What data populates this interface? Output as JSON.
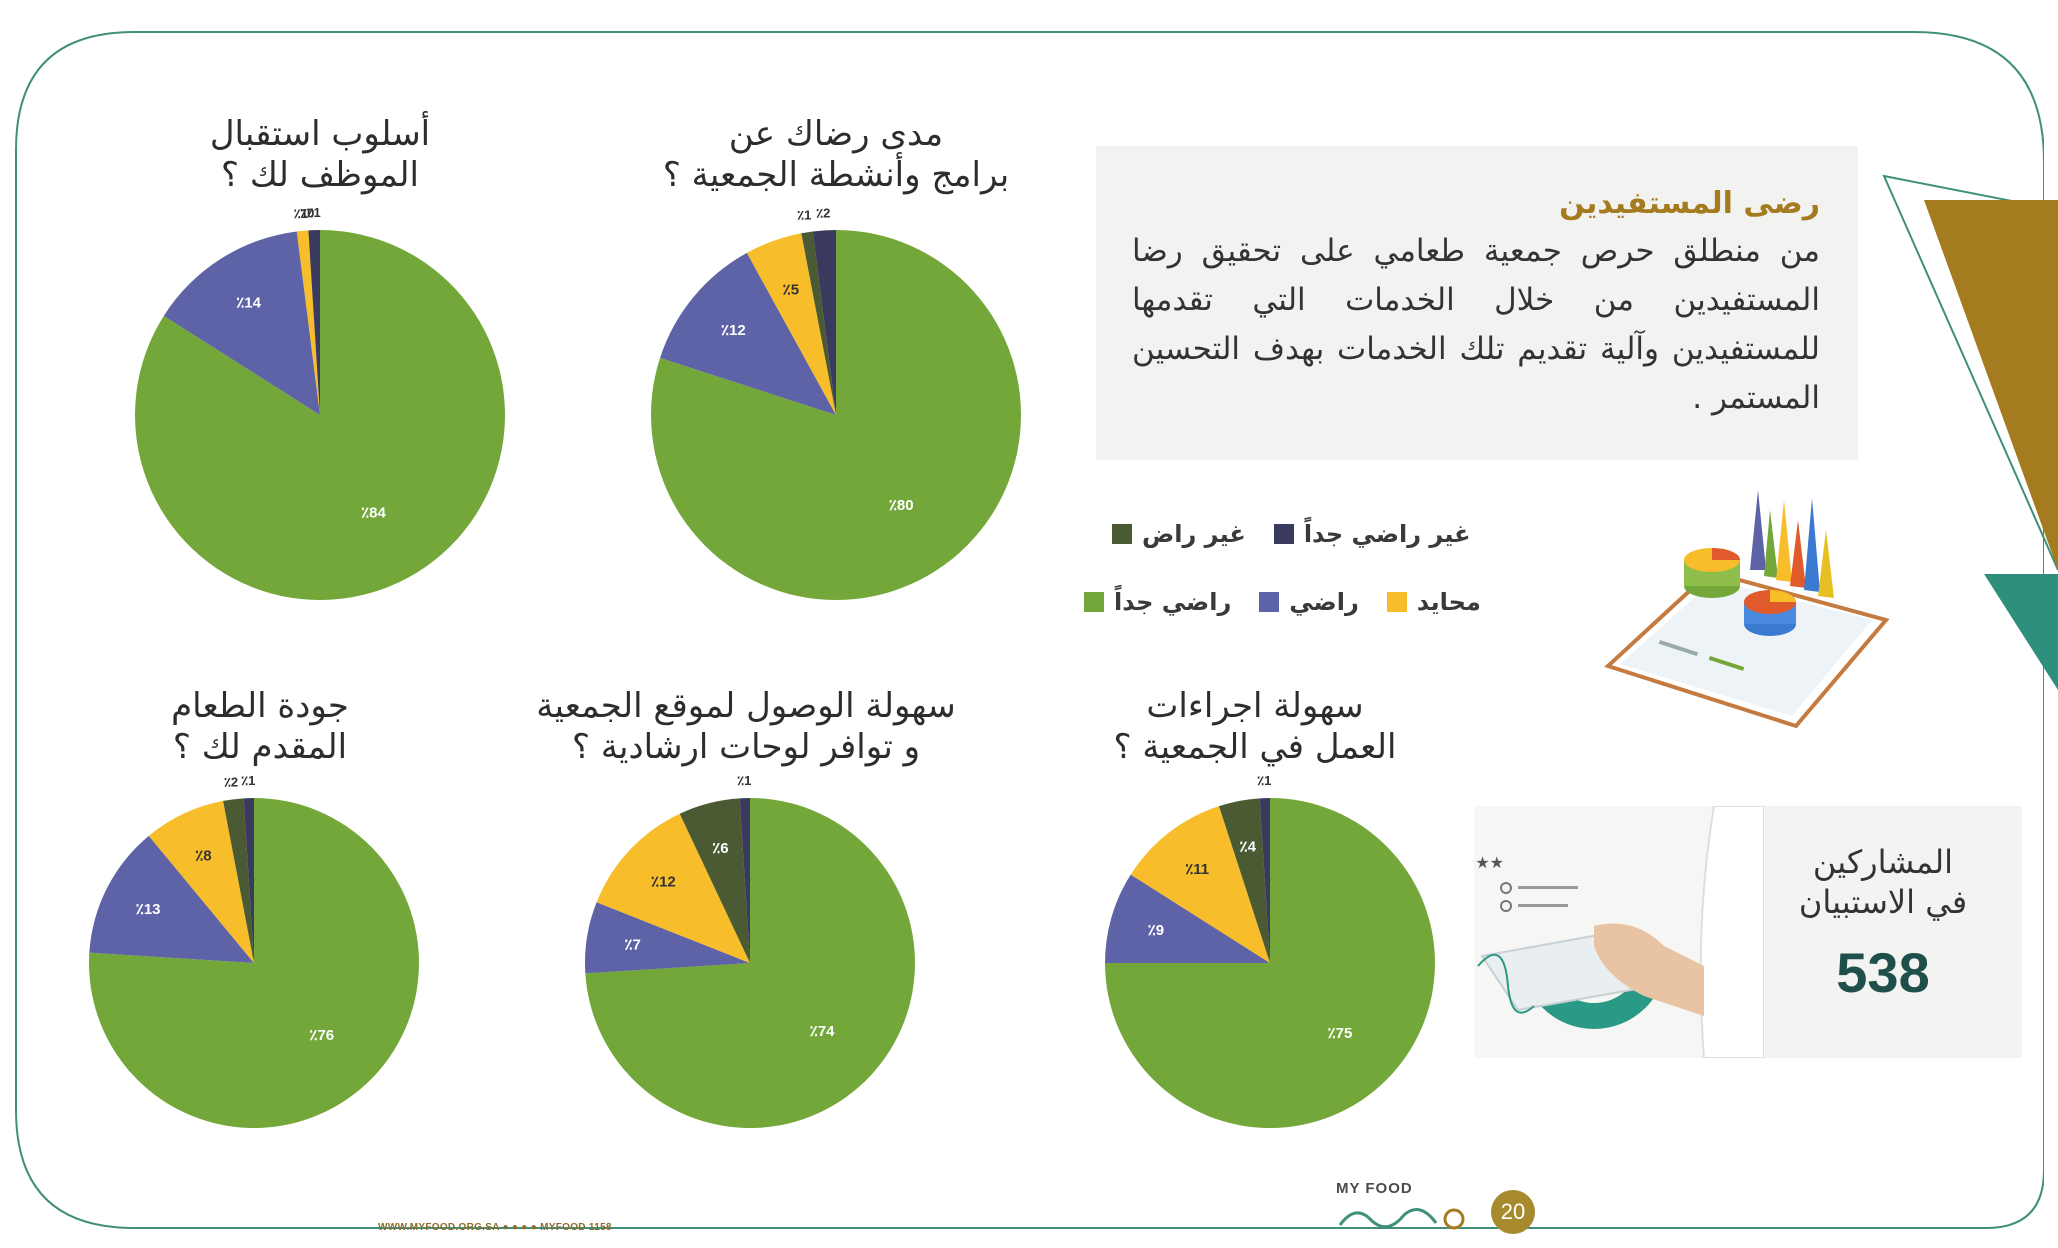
{
  "intro": {
    "heading": "رضى المستفيدين",
    "body": "من منطلق حرص جمعية طعامي على تحقيق رضا المستفيدين من خلال الخدمات التي تقدمها للمستفيدين وآلية تقديم تلك الخدمات بهدف التحسين المستمر ."
  },
  "legend": [
    {
      "label": "غير راضي جداً",
      "color": "#3a3a5e"
    },
    {
      "label": "غير راض",
      "color": "#4a5b33"
    },
    {
      "label": "محايد",
      "color": "#f7bd2a"
    },
    {
      "label": "راضي",
      "color": "#5d63a6"
    },
    {
      "label": "راضي جداً",
      "color": "#73a73a"
    }
  ],
  "participants": {
    "label_line1": "المشاركين",
    "label_line2": "في الاستبيان",
    "count": "538"
  },
  "footer": {
    "url": "WWW.MYFOOD.ORG.SA ● ● ● ● MYFOOD 1158",
    "brand": "MY FOOD",
    "page_number": "20"
  },
  "percent_prefix": "٪",
  "chart_data": [
    {
      "type": "pie",
      "title_line1": "أسلوب استقبال",
      "title_line2": "الموظف لك ؟",
      "categories": [
        "راضي جداً",
        "راضي",
        "محايد",
        "غير راض",
        "غير راضي جداً"
      ],
      "values": [
        84,
        14,
        1,
        0,
        1
      ]
    },
    {
      "type": "pie",
      "title_line1": "مدى رضاك عن",
      "title_line2": "برامج وأنشطة الجمعية ؟",
      "categories": [
        "راضي جداً",
        "راضي",
        "محايد",
        "غير راض",
        "غير راضي جداً"
      ],
      "values": [
        80,
        12,
        5,
        1,
        2
      ]
    },
    {
      "type": "pie",
      "title_line1": "جودة الطعام",
      "title_line2": "المقدم لك ؟",
      "categories": [
        "راضي جداً",
        "راضي",
        "محايد",
        "غير راض",
        "غير راضي جداً"
      ],
      "values": [
        76,
        13,
        8,
        2,
        1
      ]
    },
    {
      "type": "pie",
      "title_line1": "سهولة الوصول لموقع الجمعية",
      "title_line2": "و توافر لوحات ارشادية ؟",
      "categories": [
        "راضي جداً",
        "راضي",
        "محايد",
        "غير راض",
        "غير راضي جداً"
      ],
      "values": [
        74,
        7,
        12,
        6,
        1
      ]
    },
    {
      "type": "pie",
      "title_line1": "سهولة اجراءات",
      "title_line2": "العمل في الجمعية ؟",
      "categories": [
        "راضي جداً",
        "راضي",
        "محايد",
        "غير راض",
        "غير راضي جداً"
      ],
      "values": [
        75,
        9,
        11,
        4,
        1
      ]
    }
  ]
}
